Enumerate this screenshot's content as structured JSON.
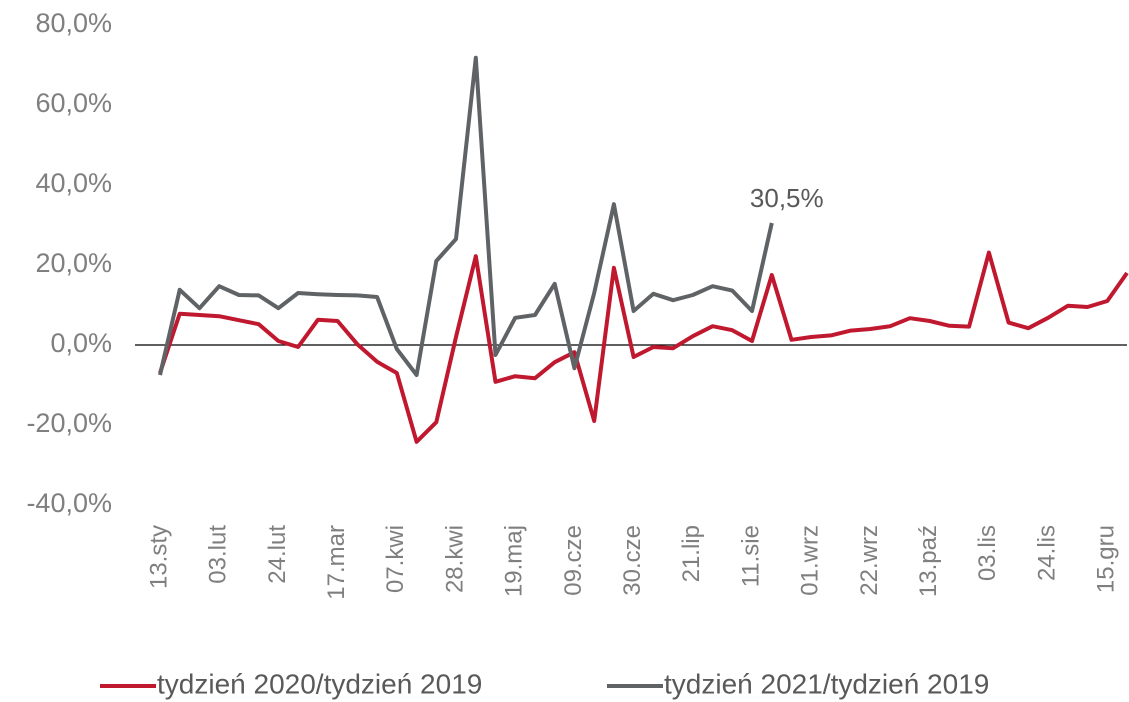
{
  "chart_data": {
    "type": "line",
    "categories": [
      "13.sty",
      null,
      null,
      "03.lut",
      null,
      null,
      "24.lut",
      null,
      null,
      "17.mar",
      null,
      null,
      "07.kwi",
      null,
      null,
      "28.kwi",
      null,
      null,
      "19.maj",
      null,
      null,
      "09.cze",
      null,
      null,
      "30.cze",
      null,
      null,
      "21.lip",
      null,
      null,
      "11.sie",
      null,
      null,
      "01.wrz",
      null,
      null,
      "22.wrz",
      null,
      null,
      "13.paź",
      null,
      null,
      "03.lis",
      null,
      null,
      "24.lis",
      null,
      null,
      "15.gru",
      null
    ],
    "series": [
      {
        "name": "tydzień 2020/tydzień 2019",
        "color": "#c0182f",
        "values": [
          -7,
          7.8,
          7.5,
          7.2,
          6.2,
          5.2,
          1,
          -0.5,
          6.3,
          6,
          0.2,
          -4.2,
          -7,
          -24.2,
          -19.3,
          2,
          22.2,
          -9.2,
          -7.8,
          -8.3,
          -4.3,
          -1.8,
          -19,
          19.3,
          -3,
          -0.5,
          -0.8,
          2.2,
          4.7,
          3.7,
          1,
          17.5,
          1.3,
          2,
          2.4,
          3.6,
          4,
          4.7,
          6.7,
          6,
          4.8,
          4.6,
          23.1,
          5.6,
          4.2,
          6.8,
          9.8,
          9.5,
          11,
          18
        ]
      },
      {
        "name": "tydzień 2021/tydzień 2019",
        "color": "#5f6366",
        "values": [
          -7.5,
          13.8,
          9.2,
          14.7,
          12.5,
          12.4,
          9.2,
          13,
          12.7,
          12.5,
          12.4,
          12,
          -1,
          -7.5,
          21,
          26.5,
          71.8,
          -2.5,
          6.8,
          7.5,
          15.3,
          -5.8,
          13,
          35.2,
          8.5,
          12.8,
          11.2,
          12.5,
          14.7,
          13.6,
          8.5,
          30.5,
          null,
          null,
          null,
          null,
          null,
          null,
          null,
          null,
          null,
          null,
          null,
          null,
          null,
          null,
          null,
          null,
          null,
          null
        ],
        "value_labels": [
          null,
          null,
          null,
          null,
          null,
          null,
          null,
          null,
          null,
          null,
          null,
          null,
          null,
          null,
          null,
          null,
          null,
          null,
          null,
          null,
          null,
          null,
          null,
          null,
          null,
          null,
          null,
          null,
          null,
          null,
          null,
          "30,5%",
          null,
          null,
          null,
          null,
          null,
          null,
          null,
          null,
          null,
          null,
          null,
          null,
          null,
          null,
          null,
          null,
          null,
          null
        ]
      }
    ],
    "ylim": [
      -40,
      80
    ],
    "yticks": [
      {
        "value": -40,
        "label": "-40,0%"
      },
      {
        "value": -20,
        "label": "-20,0%"
      },
      {
        "value": 0,
        "label": "0,0%"
      },
      {
        "value": 20,
        "label": "20,0%"
      },
      {
        "value": 40,
        "label": "40,0%"
      },
      {
        "value": 60,
        "label": "60,0%"
      },
      {
        "value": 80,
        "label": "80,0%"
      }
    ],
    "grid": false,
    "legend": "bottom"
  }
}
